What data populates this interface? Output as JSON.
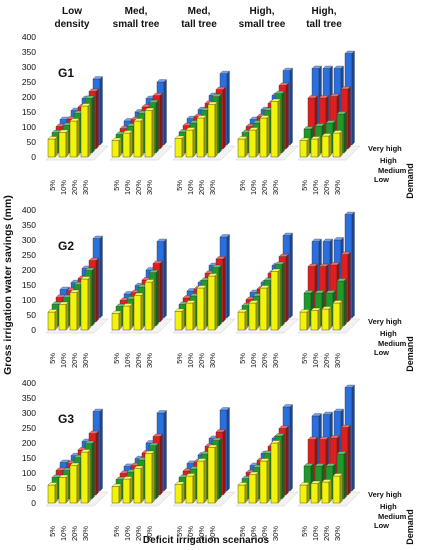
{
  "chart_data": {
    "type": "bar",
    "subtype": "3d-grouped-bar",
    "ylabel": "Gross irrigation water savings (mm)",
    "xlabel": "Deficit irrigation scenarios",
    "depth_axis_title": "Demand",
    "yticks": [
      "0",
      "50",
      "100",
      "150",
      "200",
      "250",
      "300",
      "350",
      "400"
    ],
    "ylim": [
      0,
      400
    ],
    "gridlines": false,
    "scenarios": [
      "5%",
      "10%",
      "20%",
      "30%"
    ],
    "demand_levels": [
      "Low",
      "Medium",
      "High",
      "Very high"
    ],
    "demand_colors": [
      "#f2f20a",
      "#1f9a2a",
      "#e01e1e",
      "#2a6fe0"
    ],
    "tree_classes": [
      {
        "line1": "Low",
        "line2": "density"
      },
      {
        "line1": "Med,",
        "line2": "small tree"
      },
      {
        "line1": "Med,",
        "line2": "tall tree"
      },
      {
        "line1": "High,",
        "line2": "small tree"
      },
      {
        "line1": "High,",
        "line2": "tall tree"
      }
    ],
    "groups": [
      {
        "name": "G1",
        "values": [
          [
            [
              60,
              68,
              75,
              85
            ],
            [
              82,
              92,
              100,
              115
            ],
            [
              120,
              132,
              140,
              155
            ],
            [
              170,
              182,
              192,
              220
            ]
          ],
          [
            [
              55,
              62,
              68,
              80
            ],
            [
              80,
              90,
              98,
              110
            ],
            [
              120,
              132,
              140,
              155
            ],
            [
              155,
              168,
              178,
              210
            ]
          ],
          [
            [
              62,
              70,
              78,
              88
            ],
            [
              90,
              100,
              108,
              118
            ],
            [
              130,
              142,
              152,
              165
            ],
            [
              175,
              188,
              198,
              238
            ]
          ],
          [
            [
              60,
              68,
              75,
              85
            ],
            [
              90,
              100,
              108,
              118
            ],
            [
              130,
              142,
              152,
              165
            ],
            [
              185,
              198,
              212,
              248
            ]
          ],
          [
            [
              55,
              80,
              170,
              255
            ],
            [
              60,
              90,
              170,
              255
            ],
            [
              70,
              100,
              175,
              255
            ],
            [
              80,
              130,
              200,
              305
            ]
          ]
        ]
      },
      {
        "name": "G2",
        "values": [
          [
            [
              60,
              72,
              82,
              95
            ],
            [
              85,
              95,
              105,
              118
            ],
            [
              125,
              138,
              145,
              165
            ],
            [
              170,
              185,
              205,
              265
            ]
          ],
          [
            [
              55,
              65,
              72,
              80
            ],
            [
              80,
              90,
              98,
              108
            ],
            [
              115,
              130,
              140,
              160
            ],
            [
              160,
              178,
              195,
              255
            ]
          ],
          [
            [
              62,
              72,
              80,
              90
            ],
            [
              90,
              100,
              110,
              118
            ],
            [
              140,
              152,
              162,
              175
            ],
            [
              180,
              195,
              210,
              270
            ]
          ],
          [
            [
              60,
              68,
              75,
              85
            ],
            [
              90,
              100,
              110,
              118
            ],
            [
              140,
              152,
              162,
              175
            ],
            [
              195,
              205,
              218,
              275
            ]
          ],
          [
            [
              60,
              110,
              185,
              255
            ],
            [
              65,
              110,
              185,
              255
            ],
            [
              70,
              110,
              190,
              260
            ],
            [
              90,
              150,
              225,
              345
            ]
          ]
        ]
      },
      {
        "name": "G3",
        "values": [
          [
            [
              60,
              72,
              82,
              95
            ],
            [
              85,
              95,
              105,
              118
            ],
            [
              125,
              138,
              150,
              165
            ],
            [
              170,
              185,
              205,
              265
            ]
          ],
          [
            [
              55,
              65,
              72,
              82
            ],
            [
              80,
              90,
              98,
              108
            ],
            [
              115,
              130,
              140,
              160
            ],
            [
              165,
              178,
              195,
              260
            ]
          ],
          [
            [
              62,
              72,
              80,
              92
            ],
            [
              90,
              100,
              110,
              120
            ],
            [
              140,
              150,
              162,
              175
            ],
            [
              185,
              195,
              210,
              270
            ]
          ],
          [
            [
              60,
              68,
              75,
              85
            ],
            [
              95,
              105,
              115,
              125
            ],
            [
              140,
              152,
              162,
              175
            ],
            [
              200,
              210,
              222,
              280
            ]
          ],
          [
            [
              60,
              110,
              185,
              250
            ],
            [
              65,
              110,
              185,
              255
            ],
            [
              70,
              110,
              190,
              265
            ],
            [
              90,
              150,
              225,
              345
            ]
          ]
        ]
      }
    ]
  }
}
